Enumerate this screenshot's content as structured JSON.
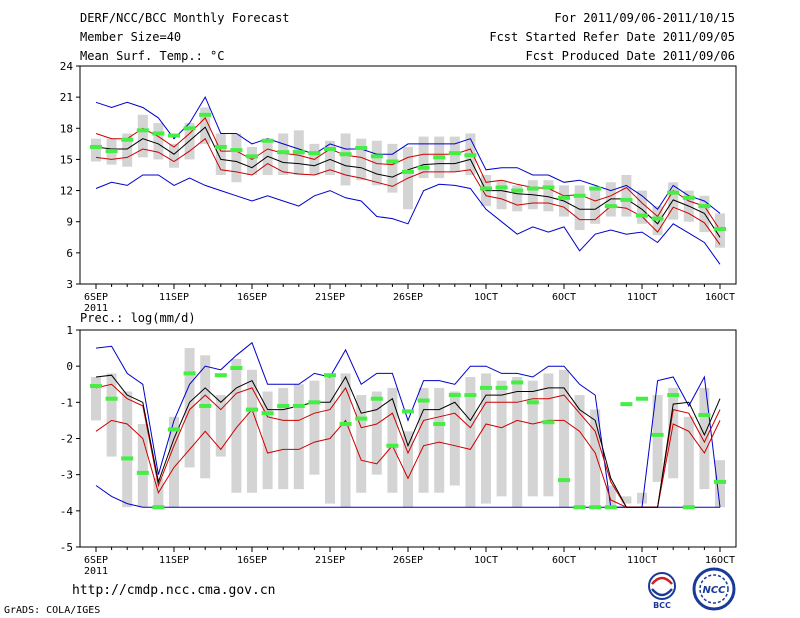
{
  "header": {
    "title": "DERF/NCC/BCC Monthly Forecast",
    "member_size": "Member Size=40",
    "variable": "Mean Surf. Temp.: °C",
    "period": "For 2011/09/06-2011/10/15",
    "started": "Fcst Started Refer Date 2011/09/05",
    "produced": "Fcst Produced Date 2011/09/06"
  },
  "footer": {
    "url": "http://cmdp.ncc.cma.gov.cn",
    "credit": "GrADS: COLA/IGES",
    "logo1_text": "BCC",
    "logo2_text": "NCC"
  },
  "colors": {
    "envelope": "#0000cc",
    "spread": "#cc0000",
    "mean": "#000000",
    "median": "#44ee44",
    "box": "#d4d4d4"
  },
  "chart_data": [
    {
      "type": "box-ensemble",
      "title": "Mean Surf. Temp.: °C",
      "ylim": [
        3,
        24
      ],
      "yticks": [
        3,
        6,
        9,
        12,
        15,
        18,
        21,
        24
      ],
      "xtick_labels": [
        "6SEP",
        "11SEP",
        "16SEP",
        "21SEP",
        "26SEP",
        "1OCT",
        "6OCT",
        "11OCT",
        "16OCT"
      ],
      "xtick_days": [
        0,
        5,
        10,
        15,
        20,
        25,
        30,
        35,
        40
      ],
      "year_label": "2011",
      "series": {
        "max": [
          20.5,
          20,
          20.5,
          20,
          19,
          17,
          18.5,
          21,
          17.5,
          17.5,
          16.5,
          17,
          16.5,
          16,
          15.5,
          16.5,
          16,
          16,
          15.5,
          15.5,
          16.5,
          16.5,
          16.5,
          16.5,
          17,
          14,
          14.2,
          14.2,
          13.5,
          13.5,
          12.8,
          13,
          12.5,
          12,
          12.5,
          11.5,
          10.2,
          12.5,
          11.5,
          11,
          9.8
        ],
        "upper": [
          17.5,
          17,
          17,
          18,
          17.2,
          16.2,
          17.5,
          19,
          15.8,
          15.8,
          15,
          16,
          15.6,
          15.4,
          15,
          16,
          15.4,
          15.2,
          14.6,
          14.5,
          15.2,
          15.5,
          15.5,
          15.5,
          16,
          12.8,
          13,
          12.6,
          12.3,
          12.2,
          11.5,
          11.6,
          11,
          11.5,
          12.3,
          10.8,
          9.5,
          12,
          11,
          10.5,
          8.2
        ],
        "mean": [
          16.2,
          16,
          16,
          17,
          16.5,
          15.5,
          16.8,
          18.1,
          15,
          14.8,
          14.2,
          15.3,
          14.7,
          14.6,
          14.4,
          15,
          14.4,
          14.2,
          13.6,
          13.3,
          14,
          14.5,
          14.6,
          14.6,
          15,
          12,
          12,
          11.7,
          11.6,
          11.4,
          11,
          10.2,
          10.2,
          11.2,
          11.2,
          10.2,
          8.8,
          11.1,
          10.5,
          9.8,
          7.5
        ],
        "lower": [
          15.2,
          15,
          15.2,
          16,
          15.7,
          14.8,
          15.8,
          17,
          14,
          13.8,
          13.5,
          14.6,
          13.8,
          13.6,
          13.5,
          14,
          13.5,
          13.2,
          12.8,
          12.4,
          13.2,
          13.8,
          13.8,
          13.8,
          14,
          11.5,
          11.2,
          10.6,
          10.8,
          10.8,
          10.4,
          9.2,
          9.2,
          10.5,
          10.3,
          9.5,
          8,
          10.4,
          9.8,
          8.9,
          6.8
        ],
        "min": [
          12.2,
          12.8,
          12.5,
          13.5,
          13.5,
          12.5,
          13.2,
          12.5,
          12,
          11.5,
          11,
          11.5,
          11,
          10.5,
          11.5,
          12,
          11.3,
          11,
          9.5,
          9.3,
          8.8,
          12,
          12.6,
          12.5,
          12.2,
          10.2,
          9,
          7.8,
          8.5,
          8,
          8.5,
          6.2,
          7.8,
          8.2,
          7.8,
          8,
          7,
          8.8,
          7.9,
          7,
          4.9
        ],
        "median": [
          16.2,
          15.8,
          16.9,
          17.8,
          17.5,
          17.3,
          18,
          19.3,
          16.2,
          15.9,
          15.3,
          16.8,
          15.7,
          15.7,
          15.6,
          16,
          15.5,
          16.1,
          15.3,
          14.8,
          13.8,
          14.2,
          15.2,
          15.6,
          15.4,
          12.2,
          12.3,
          12,
          12.2,
          12.3,
          11.3,
          11.5,
          12.2,
          10.5,
          11.1,
          9.6,
          9.3,
          11.8,
          11.3,
          10.5,
          8.3
        ],
        "box_top": [
          17,
          17,
          17.5,
          19.3,
          18.5,
          16.5,
          18.5,
          20,
          17.5,
          17.5,
          16.2,
          17,
          17.5,
          17.8,
          16.5,
          16.8,
          17.5,
          17,
          16.8,
          16.5,
          16.2,
          17.2,
          17.2,
          17.2,
          17.5,
          13.5,
          13,
          12.5,
          13,
          13,
          12.5,
          12.5,
          12.2,
          12.8,
          13.5,
          12,
          10.5,
          12.8,
          12,
          11.5,
          9.8
        ],
        "box_bottom": [
          14.8,
          14.5,
          14.3,
          15.2,
          15,
          14.2,
          15,
          16.5,
          13.5,
          12.8,
          13.5,
          13.5,
          13.5,
          13.5,
          13.5,
          13.5,
          12.5,
          13,
          12.5,
          11.8,
          10.2,
          13.2,
          13.2,
          13.8,
          13.5,
          10.5,
          10.2,
          10,
          10.2,
          10,
          9.5,
          8.2,
          8.8,
          9.5,
          9.5,
          8.8,
          7.7,
          9.2,
          9,
          8,
          6.5
        ]
      }
    },
    {
      "type": "box-ensemble",
      "title": "Prec.: log(mm/d)",
      "ylim": [
        -5,
        1
      ],
      "yticks": [
        -5,
        -4,
        -3,
        -2,
        -1,
        0,
        1
      ],
      "xtick_labels": [
        "6SEP",
        "11SEP",
        "16SEP",
        "21SEP",
        "26SEP",
        "1OCT",
        "6OCT",
        "11OCT",
        "16OCT"
      ],
      "xtick_days": [
        0,
        5,
        10,
        15,
        20,
        25,
        30,
        35,
        40
      ],
      "year_label": "2011",
      "series": {
        "max": [
          0.5,
          0.55,
          -0.2,
          -0.5,
          -3,
          -1.5,
          -0.5,
          0,
          -0.1,
          0.3,
          0.65,
          -0.5,
          -0.5,
          -0.5,
          -0.2,
          -0.3,
          0.45,
          -0.5,
          -0.2,
          -0.2,
          -1.5,
          -0.4,
          -0.4,
          -0.5,
          0,
          0,
          -0.2,
          -0.2,
          -0.3,
          0,
          0,
          -0.5,
          -0.8,
          -3.9,
          -3.9,
          -3.9,
          -0.4,
          -0.3,
          -1.1,
          -0.3,
          -3.9
        ],
        "mean": [
          -0.3,
          -0.25,
          -0.8,
          -1,
          -3.2,
          -2,
          -1,
          -0.6,
          -1,
          -0.6,
          -0.4,
          -1.2,
          -1.2,
          -1.1,
          -1,
          -1,
          -0.3,
          -1.3,
          -1.2,
          -0.9,
          -2.2,
          -1.2,
          -1.2,
          -1,
          -1.5,
          -0.8,
          -0.8,
          -0.7,
          -0.7,
          -0.6,
          -0.6,
          -1.2,
          -1.5,
          -3.1,
          -3.9,
          -3.9,
          -3.9,
          -1.05,
          -1,
          -1.9,
          -0.9
        ],
        "upper": [
          -0.6,
          -0.5,
          -0.9,
          -1.1,
          -3.3,
          -2.2,
          -1.2,
          -0.8,
          -1.2,
          -0.75,
          -0.6,
          -1.4,
          -1.5,
          -1.5,
          -1.3,
          -1.2,
          -0.6,
          -1.7,
          -1.6,
          -1.3,
          -2.4,
          -1.5,
          -1.4,
          -1.3,
          -1.7,
          -1,
          -1,
          -1,
          -0.9,
          -0.9,
          -0.8,
          -1.3,
          -1.8,
          -3.2,
          -3.9,
          -3.9,
          -3.9,
          -1.2,
          -1.3,
          -2.1,
          -1.2
        ],
        "lower": [
          -1.8,
          -1.5,
          -1.6,
          -2,
          -3.5,
          -2.8,
          -2.3,
          -1.8,
          -2.3,
          -1.7,
          -1.2,
          -2.4,
          -2.3,
          -2.3,
          -2.1,
          -2,
          -1.5,
          -2.6,
          -2.7,
          -2.2,
          -3.1,
          -2.2,
          -2.1,
          -2.2,
          -2.3,
          -1.6,
          -1.7,
          -1.5,
          -1.6,
          -1.5,
          -1.5,
          -1.8,
          -2.4,
          -3.7,
          -3.9,
          -3.9,
          -3.9,
          -1.6,
          -1.8,
          -2.4,
          -1.5
        ],
        "min": [
          -3.3,
          -3.6,
          -3.8,
          -3.9,
          -3.9,
          -3.9,
          -3.9,
          -3.9,
          -3.9,
          -3.9,
          -3.9,
          -3.9,
          -3.9,
          -3.9,
          -3.9,
          -3.9,
          -3.9,
          -3.9,
          -3.9,
          -3.9,
          -3.9,
          -3.9,
          -3.9,
          -3.9,
          -3.9,
          -3.9,
          -3.9,
          -3.9,
          -3.9,
          -3.9,
          -3.9,
          -3.9,
          -3.9,
          -3.9,
          -3.9,
          -3.9,
          -3.9,
          -3.9,
          -3.9,
          -3.9,
          -3.9
        ],
        "median": [
          -0.55,
          -0.9,
          -2.55,
          -2.95,
          -3.9,
          -1.75,
          -0.2,
          -1.1,
          -0.25,
          -0.05,
          -1.2,
          -1.3,
          -1.1,
          -1.1,
          -1,
          -0.25,
          -1.6,
          -1.45,
          -0.9,
          -2.2,
          -1.25,
          -0.95,
          -1.6,
          -0.8,
          -0.8,
          -0.6,
          -0.6,
          -0.45,
          -1,
          -1.55,
          -3.15,
          -3.9,
          -3.9,
          -3.9,
          -1.05,
          -0.9,
          -1.9,
          -0.8,
          -3.9,
          -1.35,
          -3.2
        ],
        "box_top": [
          -0.3,
          -0.2,
          -0.7,
          -1.6,
          -3.1,
          -1.4,
          0.5,
          0.3,
          -0.8,
          0.2,
          -0.1,
          -0.7,
          -0.6,
          -0.5,
          -0.4,
          -0.3,
          -0.2,
          -0.8,
          -0.7,
          -0.6,
          -1.8,
          -0.6,
          -0.6,
          -0.7,
          -0.3,
          -0.2,
          -0.4,
          -0.3,
          -0.4,
          -0.2,
          -0.1,
          -0.8,
          -1.2,
          -3.3,
          -3.8,
          -3.8,
          -0.8,
          -0.6,
          -1.4,
          -0.6,
          -2.6
        ],
        "box_bottom": [
          -1.5,
          -2.5,
          -3.9,
          -3.9,
          -3.9,
          -3.9,
          -2.8,
          -3.1,
          -2.5,
          -3.5,
          -3.5,
          -3.4,
          -3.4,
          -3.4,
          -3,
          -3.8,
          -3.9,
          -3.5,
          -3,
          -3.5,
          -3.9,
          -3.5,
          -3.5,
          -3.3,
          -3.9,
          -3.8,
          -3.6,
          -3.9,
          -3.6,
          -3.6,
          -3.9,
          -3.9,
          -3.9,
          -3.9,
          -3.6,
          -3.5,
          -3.2,
          -3.1,
          -3.9,
          -3.4,
          -3.9
        ]
      }
    }
  ]
}
